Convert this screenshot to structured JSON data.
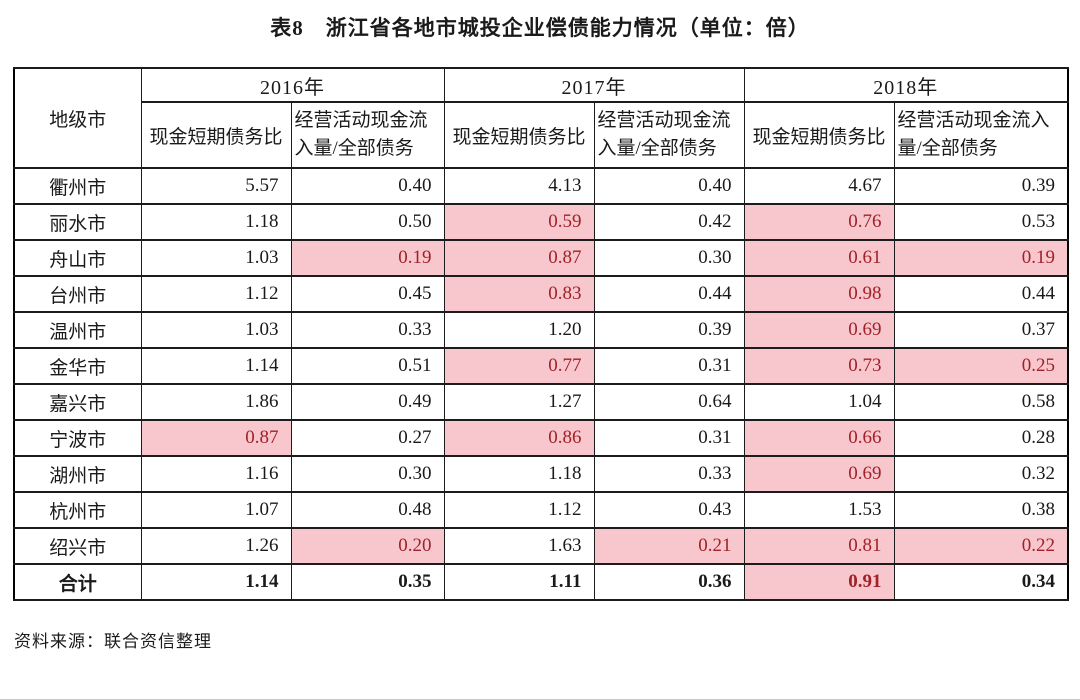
{
  "title": "表8　浙江省各地市城投企业偿债能力情况（单位：倍）",
  "source_note": "资料来源：联合资信整理",
  "colors": {
    "highlight_bg": "#f8c7cd",
    "highlight_text": "#a02128",
    "grid_line": "#1c1c1c"
  },
  "chart_data": {
    "type": "table",
    "title": "表8　浙江省各地市城投企业偿债能力情况（单位：倍）",
    "corner_header": "地级市",
    "year_groups": [
      "2016年",
      "2017年",
      "2018年"
    ],
    "sub_headers": [
      "现金短期债务比",
      "经营活动现金流入量/全部债务"
    ],
    "highlight_meaning": "pink cells with dark red text mark weak values",
    "rows": [
      {
        "city": "衢州市",
        "values": [
          "5.57",
          "0.40",
          "4.13",
          "0.40",
          "4.67",
          "0.39"
        ],
        "highlights": [
          false,
          false,
          false,
          false,
          false,
          false
        ],
        "bold": false
      },
      {
        "city": "丽水市",
        "values": [
          "1.18",
          "0.50",
          "0.59",
          "0.42",
          "0.76",
          "0.53"
        ],
        "highlights": [
          false,
          false,
          true,
          false,
          true,
          false
        ],
        "bold": false
      },
      {
        "city": "舟山市",
        "values": [
          "1.03",
          "0.19",
          "0.87",
          "0.30",
          "0.61",
          "0.19"
        ],
        "highlights": [
          false,
          true,
          true,
          false,
          true,
          true
        ],
        "bold": false
      },
      {
        "city": "台州市",
        "values": [
          "1.12",
          "0.45",
          "0.83",
          "0.44",
          "0.98",
          "0.44"
        ],
        "highlights": [
          false,
          false,
          true,
          false,
          true,
          false
        ],
        "bold": false
      },
      {
        "city": "温州市",
        "values": [
          "1.03",
          "0.33",
          "1.20",
          "0.39",
          "0.69",
          "0.37"
        ],
        "highlights": [
          false,
          false,
          false,
          false,
          true,
          false
        ],
        "bold": false
      },
      {
        "city": "金华市",
        "values": [
          "1.14",
          "0.51",
          "0.77",
          "0.31",
          "0.73",
          "0.25"
        ],
        "highlights": [
          false,
          false,
          true,
          false,
          true,
          true
        ],
        "bold": false
      },
      {
        "city": "嘉兴市",
        "values": [
          "1.86",
          "0.49",
          "1.27",
          "0.64",
          "1.04",
          "0.58"
        ],
        "highlights": [
          false,
          false,
          false,
          false,
          false,
          false
        ],
        "bold": false
      },
      {
        "city": "宁波市",
        "values": [
          "0.87",
          "0.27",
          "0.86",
          "0.31",
          "0.66",
          "0.28"
        ],
        "highlights": [
          true,
          false,
          true,
          false,
          true,
          false
        ],
        "bold": false
      },
      {
        "city": "湖州市",
        "values": [
          "1.16",
          "0.30",
          "1.18",
          "0.33",
          "0.69",
          "0.32"
        ],
        "highlights": [
          false,
          false,
          false,
          false,
          true,
          false
        ],
        "bold": false
      },
      {
        "city": "杭州市",
        "values": [
          "1.07",
          "0.48",
          "1.12",
          "0.43",
          "1.53",
          "0.38"
        ],
        "highlights": [
          false,
          false,
          false,
          false,
          false,
          false
        ],
        "bold": false
      },
      {
        "city": "绍兴市",
        "values": [
          "1.26",
          "0.20",
          "1.63",
          "0.21",
          "0.81",
          "0.22"
        ],
        "highlights": [
          false,
          true,
          false,
          true,
          true,
          true
        ],
        "bold": false
      },
      {
        "city": "合计",
        "values": [
          "1.14",
          "0.35",
          "1.11",
          "0.36",
          "0.91",
          "0.34"
        ],
        "highlights": [
          false,
          false,
          false,
          false,
          true,
          false
        ],
        "bold": true
      }
    ]
  }
}
